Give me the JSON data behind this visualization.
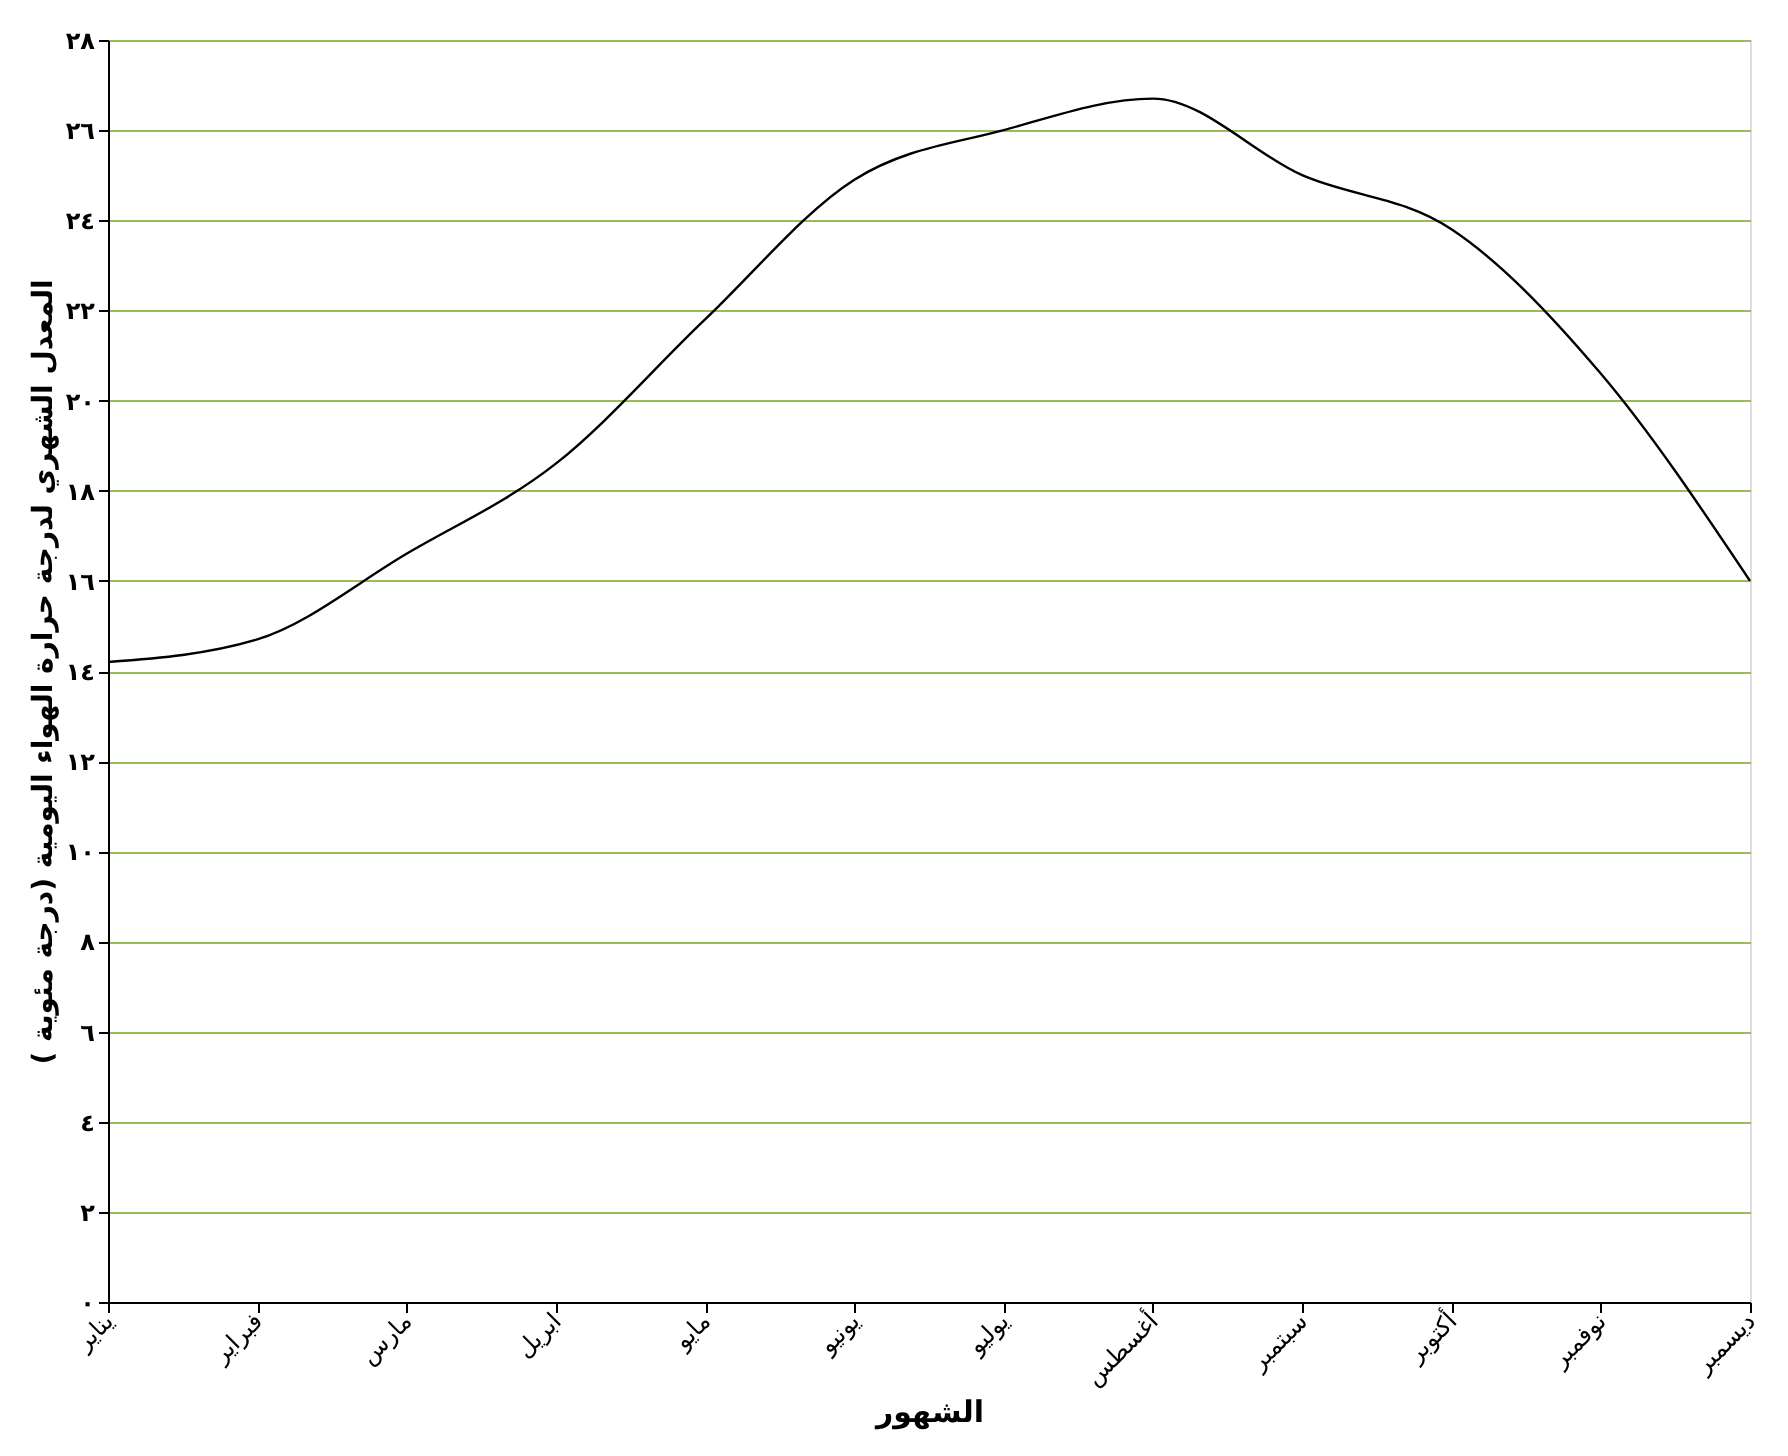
{
  "chart_data": {
    "type": "line",
    "xlabel": "الشهور",
    "ylabel": "المعدل الشهري لدرجة حرارة الهواء اليومية (درجة مئوية )",
    "categories": [
      "يناير",
      "فبراير",
      "مارس",
      "ابريل",
      "مايو",
      "يونيو",
      "يوليو",
      "أغسطس",
      "سبتمبر",
      "أكتوبر",
      "نوفمبر",
      "ديسمبر"
    ],
    "series": [
      {
        "color": "#000000",
        "values": [
          14.2,
          14.7,
          16.6,
          18.6,
          21.8,
          24.9,
          26.0,
          26.7,
          25.0,
          23.8,
          20.6,
          16.0
        ]
      }
    ],
    "ylim": [
      0,
      28
    ],
    "yticks": [
      {
        "value": 0,
        "label": "٠"
      },
      {
        "value": 2,
        "label": "٢"
      },
      {
        "value": 4,
        "label": "٤"
      },
      {
        "value": 6,
        "label": "٦"
      },
      {
        "value": 8,
        "label": "٨"
      },
      {
        "value": 10,
        "label": "١٠"
      },
      {
        "value": 12,
        "label": "١٢"
      },
      {
        "value": 14,
        "label": "١٤"
      },
      {
        "value": 16,
        "label": "١٦"
      },
      {
        "value": 18,
        "label": "١٨"
      },
      {
        "value": 20,
        "label": "٢٠"
      },
      {
        "value": 22,
        "label": "٢٢"
      },
      {
        "value": 24,
        "label": "٢٤"
      },
      {
        "value": 26,
        "label": "٢٦"
      },
      {
        "value": 28,
        "label": "٢٨"
      }
    ],
    "grid": "y",
    "marker": "none",
    "line_style": "solid"
  }
}
